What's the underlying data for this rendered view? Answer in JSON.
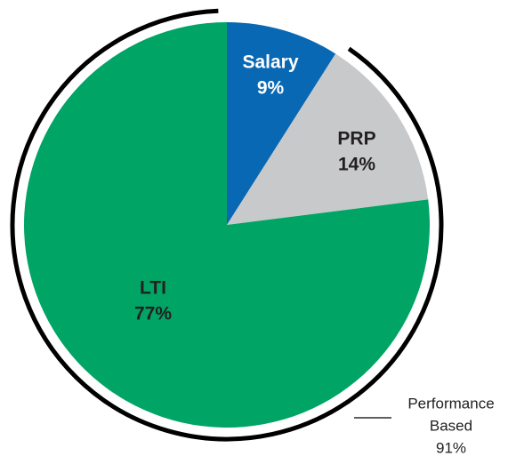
{
  "chart_data": {
    "type": "pie",
    "categories": [
      "Salary",
      "PRP",
      "LTI"
    ],
    "values": [
      9,
      14,
      77
    ],
    "value_labels": [
      "9%",
      "14%",
      "77%"
    ],
    "colors": [
      "#0868b4",
      "#c8c9cb",
      "#00a465"
    ],
    "label_colors": [
      "#ffffff",
      "#231f20",
      "#231f20"
    ],
    "annotation": {
      "lines": [
        "Performance",
        "Based"
      ],
      "value": 91,
      "value_label": "91%"
    }
  }
}
